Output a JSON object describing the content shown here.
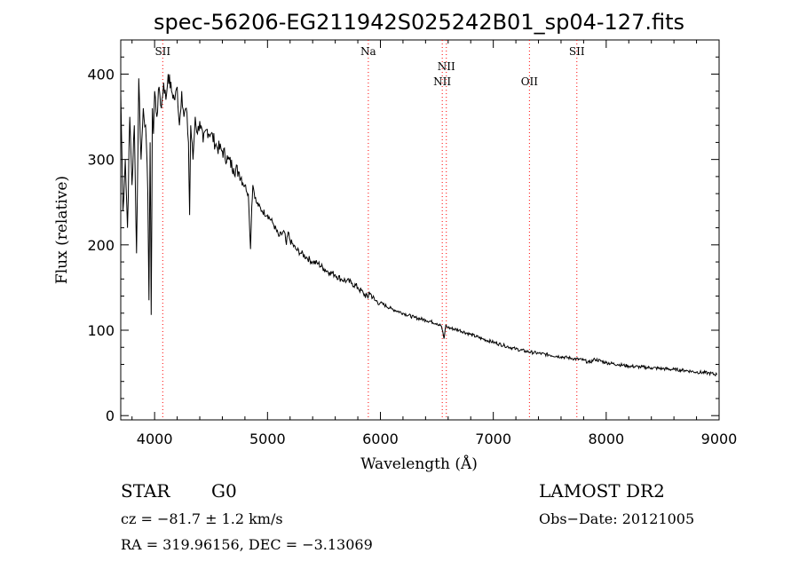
{
  "chart_data": {
    "type": "line",
    "title": "spec-56206-EG211942S025242B01_sp04-127.fits",
    "xlabel": "Wavelength (Å)",
    "ylabel": "Flux (relative)",
    "xlim": [
      3700,
      9000
    ],
    "ylim": [
      -5,
      440
    ],
    "x_ticks": [
      4000,
      5000,
      6000,
      7000,
      8000,
      9000
    ],
    "y_ticks": [
      0,
      100,
      200,
      300,
      400
    ],
    "series": [
      {
        "name": "spectrum",
        "x": [
          3700,
          3720,
          3740,
          3760,
          3780,
          3800,
          3820,
          3840,
          3860,
          3880,
          3900,
          3920,
          3940,
          3950,
          3960,
          3970,
          3980,
          3990,
          4000,
          4020,
          4040,
          4060,
          4080,
          4100,
          4120,
          4150,
          4180,
          4200,
          4220,
          4240,
          4260,
          4280,
          4300,
          4310,
          4320,
          4340,
          4360,
          4380,
          4400,
          4430,
          4460,
          4500,
          4550,
          4600,
          4650,
          4700,
          4750,
          4800,
          4830,
          4850,
          4861,
          4870,
          4900,
          4950,
          5000,
          5050,
          5100,
          5150,
          5167,
          5183,
          5200,
          5250,
          5300,
          5350,
          5400,
          5450,
          5500,
          5550,
          5600,
          5650,
          5700,
          5750,
          5800,
          5850,
          5890,
          5900,
          5950,
          6000,
          6100,
          6200,
          6300,
          6400,
          6500,
          6540,
          6563,
          6580,
          6600,
          6700,
          6800,
          6900,
          7000,
          7100,
          7200,
          7300,
          7400,
          7500,
          7600,
          7700,
          7800,
          7850,
          7900,
          8000,
          8100,
          8200,
          8300,
          8400,
          8500,
          8600,
          8700,
          8800,
          8900,
          8980
        ],
        "y": [
          380,
          240,
          300,
          220,
          350,
          270,
          340,
          190,
          395,
          300,
          360,
          340,
          260,
          135,
          320,
          118,
          360,
          330,
          380,
          350,
          385,
          360,
          390,
          370,
          400,
          380,
          370,
          385,
          340,
          380,
          350,
          360,
          320,
          235,
          340,
          300,
          350,
          330,
          345,
          320,
          335,
          330,
          315,
          310,
          300,
          290,
          285,
          270,
          260,
          195,
          245,
          270,
          250,
          240,
          235,
          225,
          210,
          215,
          200,
          215,
          205,
          195,
          190,
          185,
          180,
          178,
          172,
          168,
          165,
          160,
          158,
          155,
          150,
          143,
          138,
          145,
          135,
          132,
          125,
          120,
          115,
          112,
          108,
          105,
          90,
          106,
          103,
          100,
          95,
          90,
          86,
          82,
          78,
          75,
          73,
          71,
          69,
          67,
          65,
          62,
          66,
          62,
          60,
          58,
          57,
          56,
          55,
          54,
          53,
          51,
          50,
          48
        ]
      }
    ],
    "line_markers": [
      {
        "label": "SII",
        "x": 4072,
        "label_pos": "top"
      },
      {
        "label": "Na",
        "x": 5893,
        "label_pos": "top"
      },
      {
        "label": "NII",
        "x": 6548,
        "label_pos": "lower"
      },
      {
        "label": "NII",
        "x": 6584,
        "label_pos": "upper"
      },
      {
        "label": "OII",
        "x": 7320,
        "label_pos": "lower"
      },
      {
        "label": "SII",
        "x": 7740,
        "label_pos": "top"
      }
    ]
  },
  "info": {
    "object_class": "STAR",
    "subclass": "G0",
    "survey": "LAMOST DR2",
    "velocity": "cz = −81.7 ± 1.2 km/s",
    "obs_date": "Obs−Date: 20121005",
    "coords": "RA = 319.96156, DEC =  −3.13069"
  },
  "colors": {
    "spectrum": "#000000",
    "marker": "#ff0000",
    "axis": "#000000",
    "background": "#ffffff"
  }
}
